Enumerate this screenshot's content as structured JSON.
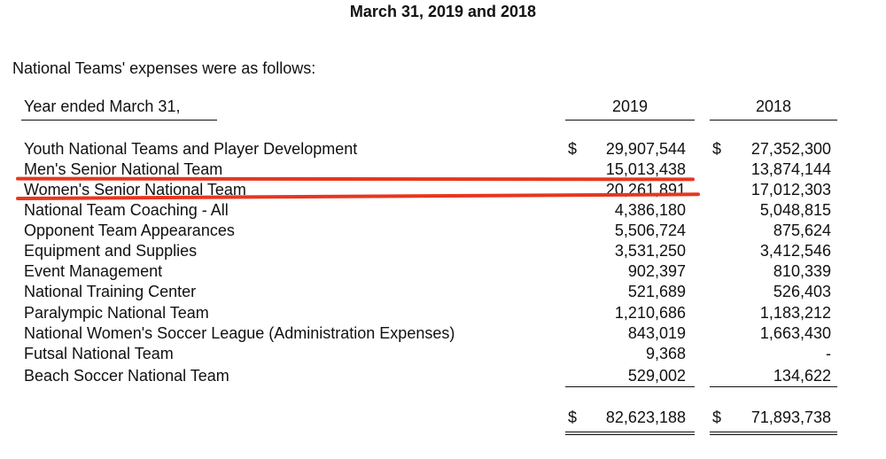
{
  "document": {
    "title": "March 31, 2019 and 2018",
    "intro": "National Teams' expenses were as follows:",
    "year_header": "Year ended March 31,",
    "columns": [
      "2019",
      "2018"
    ],
    "currency_symbol": "$",
    "rows": [
      {
        "label": "Youth National Teams and Player Development",
        "v2019": "29,907,544",
        "v2018": "27,352,300"
      },
      {
        "label": "Men's Senior National Team",
        "v2019": "15,013,438",
        "v2018": "13,874,144"
      },
      {
        "label": "Women's Senior National Team",
        "v2019": "20,261,891",
        "v2018": "17,012,303"
      },
      {
        "label": "National Team Coaching - All",
        "v2019": "4,386,180",
        "v2018": "5,048,815"
      },
      {
        "label": "Opponent Team Appearances",
        "v2019": "5,506,724",
        "v2018": "875,624"
      },
      {
        "label": "Equipment and Supplies",
        "v2019": "3,531,250",
        "v2018": "3,412,546"
      },
      {
        "label": "Event Management",
        "v2019": "902,397",
        "v2018": "810,339"
      },
      {
        "label": "National Training Center",
        "v2019": "521,689",
        "v2018": "526,403"
      },
      {
        "label": "Paralympic National Team",
        "v2019": "1,210,686",
        "v2018": "1,183,212"
      },
      {
        "label": "National Women's Soccer League (Administration Expenses)",
        "v2019": "843,019",
        "v2018": "1,663,430"
      },
      {
        "label": "Futsal National Team",
        "v2019": "9,368",
        "v2018": "-"
      },
      {
        "label": "Beach Soccer National Team",
        "v2019": "529,002",
        "v2018": "134,622"
      }
    ],
    "total": {
      "v2019": "82,623,188",
      "v2018": "71,893,738"
    }
  },
  "colors": {
    "highlight": "#e8361f",
    "text": "#111111"
  }
}
